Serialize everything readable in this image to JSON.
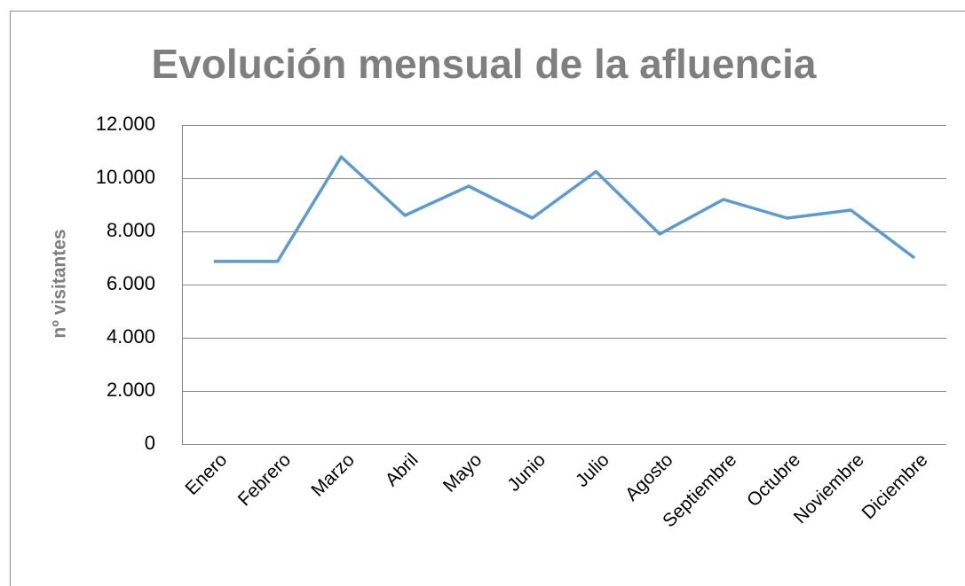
{
  "chart_data": {
    "type": "line",
    "title": "Evolución mensual de la afluencia",
    "y_label": "nº visitantes",
    "categories": [
      "Enero",
      "Febrero",
      "Marzo",
      "Abril",
      "Mayo",
      "Junio",
      "Julio",
      "Agosto",
      "Septiembre",
      "Octubre",
      "Noviembre",
      "Diciembre"
    ],
    "values": [
      6870,
      6870,
      10800,
      8600,
      9700,
      8500,
      10250,
      7900,
      9200,
      8500,
      8800,
      7000
    ],
    "color": "#5b9bd5",
    "ylim": [
      0,
      12000
    ],
    "yticks": [
      0,
      {
        "value": 2000,
        "label": "2.000"
      },
      {
        "value": 4000,
        "label": "4.000"
      },
      {
        "value": 6000,
        "label": "6.000"
      },
      {
        "value": 8000,
        "label": "8.000"
      },
      {
        "value": 10000,
        "label": "10.000"
      },
      {
        "value": 12000,
        "label": "12.000"
      }
    ],
    "grid": true
  }
}
